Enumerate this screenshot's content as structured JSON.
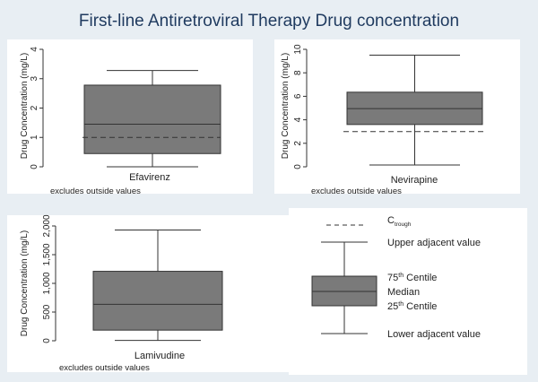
{
  "title": "First-line Antiretroviral Therapy Drug concentration",
  "chart_data": [
    {
      "type": "box",
      "category": "Efavirenz",
      "ylabel": "Drug Concentration (mg/L)",
      "note": "excludes outside values",
      "ylim": [
        0,
        4
      ],
      "yticks": [
        0,
        1,
        2,
        3,
        4
      ],
      "ytick_labels": [
        "0",
        "1",
        "2",
        "3",
        "4"
      ],
      "box": {
        "lower_adjacent": 0.0,
        "p25": 0.45,
        "median": 1.45,
        "p75": 2.78,
        "upper_adjacent": 3.28
      },
      "reference_line": 1.0
    },
    {
      "type": "box",
      "category": "Nevirapine",
      "ylabel": "Drug Concentration (mg/L)",
      "note": "excludes outside values",
      "ylim": [
        0,
        10
      ],
      "yticks": [
        0,
        2,
        4,
        6,
        8,
        10
      ],
      "ytick_labels": [
        "0",
        "2",
        "4",
        "6",
        "8",
        "10"
      ],
      "box": {
        "lower_adjacent": 0.15,
        "p25": 3.6,
        "median": 4.95,
        "p75": 6.35,
        "upper_adjacent": 9.5
      },
      "reference_line": 3.0
    },
    {
      "type": "box",
      "category": "Lamivudine",
      "ylabel": "Drug Concentration (mg/L)",
      "note": "excludes outside values",
      "ylim": [
        0,
        2000
      ],
      "yticks": [
        0,
        500,
        1000,
        1500,
        2000
      ],
      "ytick_labels": [
        "0",
        "500",
        "1,000",
        "1,500",
        "2,000"
      ],
      "box": {
        "lower_adjacent": 5,
        "p25": 185,
        "median": 635,
        "p75": 1210,
        "upper_adjacent": 1930
      },
      "reference_line": null
    }
  ],
  "legend": {
    "ctrough_base": "C",
    "ctrough_sub": "trough",
    "upper_adjacent": "Upper adjacent value",
    "p75_sup_num": "75",
    "p75_sup": "th",
    "p75_rest": " Centile",
    "median": "Median",
    "p25_sup_num": "25",
    "p25_sup": "th",
    "p25_rest": " Centile",
    "lower_adjacent": "Lower  adjacent value"
  },
  "colors": {
    "background": "#e8eef3",
    "panel": "#ffffff",
    "box_fill": "#7a7a7a",
    "title": "#1f3a5f",
    "line": "#333333"
  }
}
